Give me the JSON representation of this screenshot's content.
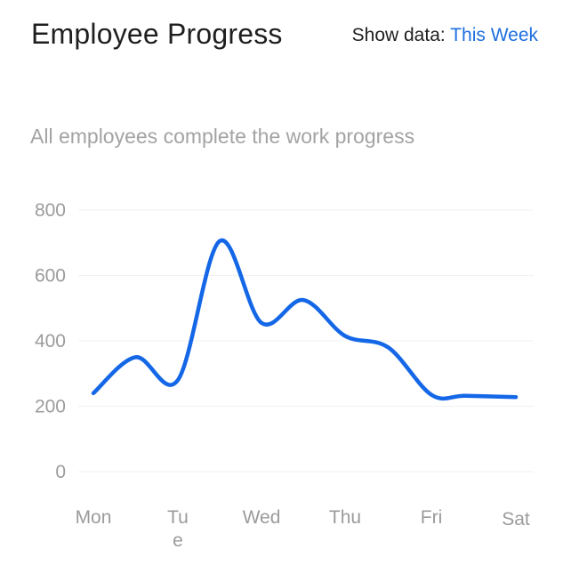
{
  "header": {
    "title": "Employee Progress",
    "filter_label": "Show data:",
    "filter_value": "This Week"
  },
  "colors": {
    "line": "#1467e6",
    "accent": "#1e6fe0",
    "grid": "#f1f1f1",
    "tick_text": "#9b9b9b"
  },
  "chart_data": {
    "type": "line",
    "subtitle": "All employees complete the work progress",
    "categories": [
      "Mon",
      "Tue",
      "Wed",
      "Thu",
      "Fri",
      "Sat"
    ],
    "y_ticks": [
      0,
      200,
      400,
      600,
      800
    ],
    "ylim": [
      0,
      800
    ],
    "grid": true,
    "legend": "none",
    "series": [
      {
        "x": [
          0,
          0.5,
          1,
          1.5,
          2,
          2.5,
          3,
          3.5,
          4,
          4.4,
          5
        ],
        "values": [
          240,
          350,
          280,
          705,
          455,
          525,
          415,
          380,
          235,
          232,
          228
        ]
      }
    ]
  }
}
